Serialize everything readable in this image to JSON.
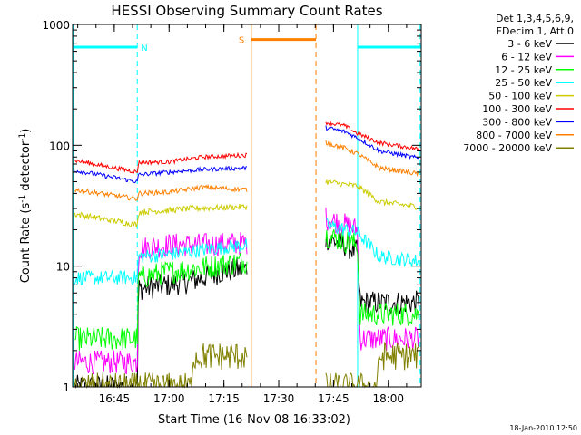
{
  "chart_data": {
    "type": "line",
    "title": "HESSI Observing Summary Count Rates",
    "xlabel": "Start Time (16-Nov-08 16:33:02)",
    "ylabel": "Count Rate (s",
    "ylabel_sup1": "-1",
    "ylabel_mid": " detector",
    "ylabel_sup2": "-1",
    "ylabel_end": ")",
    "footer": "18-Jan-2010 12:50",
    "y_scale": "log",
    "xlim": [
      16.56,
      18.15
    ],
    "ylim": [
      1,
      1000
    ],
    "x_ticks": [
      {
        "v": 16.75,
        "label": "16:45"
      },
      {
        "v": 17.0,
        "label": "17:00"
      },
      {
        "v": 17.25,
        "label": "17:15"
      },
      {
        "v": 17.5,
        "label": "17:30"
      },
      {
        "v": 17.75,
        "label": "17:45"
      },
      {
        "v": 18.0,
        "label": "18:00"
      }
    ],
    "y_ticks": [
      {
        "v": 1,
        "label": "1"
      },
      {
        "v": 10,
        "label": "10"
      },
      {
        "v": 100,
        "label": "100"
      },
      {
        "v": 1000,
        "label": "1000"
      }
    ],
    "legend_header": [
      "Det 1,3,4,5,6,9,",
      "FDecim 1, Att 0"
    ],
    "legend_placement": "right",
    "flags": [
      {
        "label": "N",
        "color": "#00ffff",
        "level": 650,
        "x_start": 16.56,
        "x_end": 16.855,
        "dashes": [
          16.855
        ],
        "solid": []
      },
      {
        "label": "",
        "color": "#00ffff",
        "level": 650,
        "x_start": 17.86,
        "x_end": 18.15,
        "dashes": [
          18.145
        ],
        "solid": [
          17.86
        ]
      },
      {
        "label": "S",
        "color": "#ff8000",
        "level": 750,
        "x_start": 17.375,
        "x_end": 17.67,
        "dashes": [
          17.67
        ],
        "solid": [
          17.375
        ]
      }
    ],
    "gaps": [
      [
        17.36,
        17.7
      ]
    ],
    "series": [
      {
        "name": "3 - 6 keV",
        "color": "#000000",
        "seg1": [
          [
            16.57,
            1
          ],
          [
            16.855,
            1
          ],
          [
            16.86,
            6.5
          ],
          [
            17.0,
            7.0
          ],
          [
            17.1,
            7.5
          ],
          [
            17.2,
            8.5
          ],
          [
            17.24,
            9.0
          ],
          [
            17.355,
            9.5
          ]
        ],
        "seg2": [
          [
            17.715,
            17
          ],
          [
            17.8,
            15
          ],
          [
            17.86,
            13
          ],
          [
            17.87,
            5
          ],
          [
            18.14,
            5
          ]
        ],
        "jitter": 0.1
      },
      {
        "name": "6 - 12 keV",
        "color": "#ff00ff",
        "seg1": [
          [
            16.57,
            1.6
          ],
          [
            16.855,
            1.6
          ],
          [
            16.86,
            14
          ],
          [
            17.0,
            15
          ],
          [
            17.15,
            15
          ],
          [
            17.355,
            15.5
          ]
        ],
        "seg2": [
          [
            17.715,
            25
          ],
          [
            17.8,
            22
          ],
          [
            17.86,
            20
          ],
          [
            17.87,
            2.5
          ],
          [
            18.14,
            2.5
          ]
        ],
        "jitter": 0.1
      },
      {
        "name": "12 - 25 keV",
        "color": "#00ff00",
        "seg1": [
          [
            16.57,
            2.5
          ],
          [
            16.855,
            2.5
          ],
          [
            16.86,
            8.0
          ],
          [
            17.0,
            9.0
          ],
          [
            17.2,
            10
          ],
          [
            17.355,
            11
          ]
        ],
        "seg2": [
          [
            17.715,
            18
          ],
          [
            17.86,
            15
          ],
          [
            17.87,
            4.0
          ],
          [
            18.14,
            4.0
          ]
        ],
        "jitter": 0.1
      },
      {
        "name": "25 - 50 keV",
        "color": "#00ffff",
        "seg1": [
          [
            16.57,
            8.0
          ],
          [
            16.855,
            8.0
          ],
          [
            16.86,
            12
          ],
          [
            17.0,
            12.5
          ],
          [
            17.2,
            14
          ],
          [
            17.355,
            15
          ]
        ],
        "seg2": [
          [
            17.715,
            22
          ],
          [
            17.86,
            19
          ],
          [
            17.96,
            12
          ],
          [
            18.14,
            11
          ]
        ],
        "jitter": 0.06
      },
      {
        "name": "50 - 100 keV",
        "color": "#cccc00",
        "seg1": [
          [
            16.57,
            27
          ],
          [
            16.855,
            22
          ],
          [
            16.86,
            28
          ],
          [
            17.0,
            29
          ],
          [
            17.1,
            30
          ],
          [
            17.355,
            31
          ]
        ],
        "seg2": [
          [
            17.715,
            50
          ],
          [
            17.86,
            46
          ],
          [
            17.96,
            34
          ],
          [
            18.14,
            31
          ]
        ],
        "jitter": 0.025
      },
      {
        "name": "100 - 300 keV",
        "color": "#ff0000",
        "seg1": [
          [
            16.57,
            75
          ],
          [
            16.855,
            60
          ],
          [
            16.86,
            72
          ],
          [
            17.0,
            73
          ],
          [
            17.15,
            80
          ],
          [
            17.355,
            83
          ]
        ],
        "seg2": [
          [
            17.715,
            155
          ],
          [
            17.8,
            145
          ],
          [
            17.86,
            125
          ],
          [
            17.96,
            105
          ],
          [
            18.14,
            93
          ]
        ],
        "jitter": 0.018
      },
      {
        "name": "300 - 800 keV",
        "color": "#0000ff",
        "seg1": [
          [
            16.57,
            62
          ],
          [
            16.855,
            50
          ],
          [
            16.86,
            57
          ],
          [
            17.0,
            60
          ],
          [
            17.15,
            63
          ],
          [
            17.355,
            65
          ]
        ],
        "seg2": [
          [
            17.715,
            140
          ],
          [
            17.8,
            130
          ],
          [
            17.86,
            115
          ],
          [
            17.96,
            90
          ],
          [
            18.14,
            78
          ]
        ],
        "jitter": 0.018
      },
      {
        "name": "800 - 7000 keV",
        "color": "#ff8000",
        "seg1": [
          [
            16.57,
            43
          ],
          [
            16.855,
            36
          ],
          [
            16.86,
            40
          ],
          [
            17.0,
            41
          ],
          [
            17.15,
            45
          ],
          [
            17.355,
            43
          ]
        ],
        "seg2": [
          [
            17.715,
            105
          ],
          [
            17.8,
            95
          ],
          [
            17.86,
            85
          ],
          [
            17.96,
            65
          ],
          [
            18.14,
            58
          ]
        ],
        "jitter": 0.02
      },
      {
        "name": "7000 - 20000 keV",
        "color": "#808000",
        "seg1": [
          [
            16.57,
            1
          ],
          [
            17.1,
            1
          ],
          [
            17.11,
            1.8
          ],
          [
            17.355,
            1.8
          ]
        ],
        "seg2": [
          [
            17.715,
            1
          ],
          [
            17.95,
            1
          ],
          [
            17.96,
            1.8
          ],
          [
            18.14,
            1.8
          ]
        ],
        "jitter": 0.12
      }
    ]
  }
}
